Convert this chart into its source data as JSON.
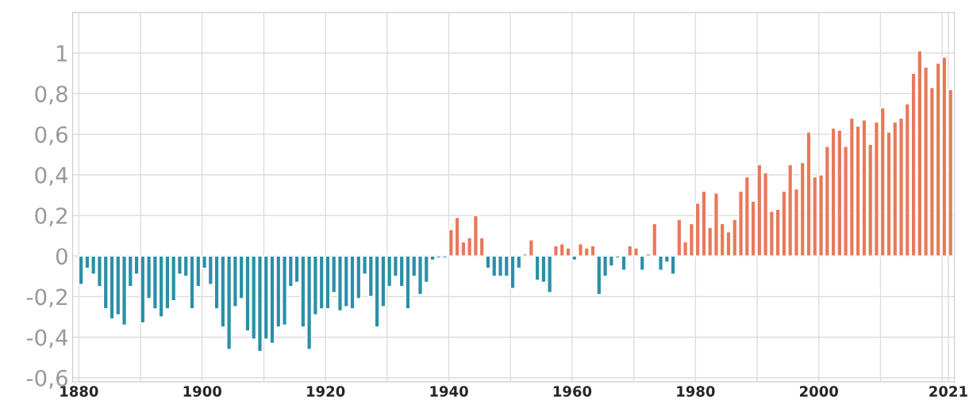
{
  "chart_data": {
    "type": "bar",
    "x": [
      1880,
      1881,
      1882,
      1883,
      1884,
      1885,
      1886,
      1887,
      1888,
      1889,
      1890,
      1891,
      1892,
      1893,
      1894,
      1895,
      1896,
      1897,
      1898,
      1899,
      1900,
      1901,
      1902,
      1903,
      1904,
      1905,
      1906,
      1907,
      1908,
      1909,
      1910,
      1911,
      1912,
      1913,
      1914,
      1915,
      1916,
      1917,
      1918,
      1919,
      1920,
      1921,
      1922,
      1923,
      1924,
      1925,
      1926,
      1927,
      1928,
      1929,
      1930,
      1931,
      1932,
      1933,
      1934,
      1935,
      1936,
      1937,
      1938,
      1939,
      1940,
      1941,
      1942,
      1943,
      1944,
      1945,
      1946,
      1947,
      1948,
      1949,
      1950,
      1951,
      1952,
      1953,
      1954,
      1955,
      1956,
      1957,
      1958,
      1959,
      1960,
      1961,
      1962,
      1963,
      1964,
      1965,
      1966,
      1967,
      1968,
      1969,
      1970,
      1971,
      1972,
      1973,
      1974,
      1975,
      1976,
      1977,
      1978,
      1979,
      1980,
      1981,
      1982,
      1983,
      1984,
      1985,
      1986,
      1987,
      1988,
      1989,
      1990,
      1991,
      1992,
      1993,
      1994,
      1995,
      1996,
      1997,
      1998,
      1999,
      2000,
      2001,
      2002,
      2003,
      2004,
      2005,
      2006,
      2007,
      2008,
      2009,
      2010,
      2011,
      2012,
      2013,
      2014,
      2015,
      2016,
      2017,
      2018,
      2019,
      2020,
      2021
    ],
    "values": [
      -0.14,
      -0.06,
      -0.09,
      -0.15,
      -0.26,
      -0.31,
      -0.29,
      -0.34,
      -0.15,
      -0.09,
      -0.33,
      -0.21,
      -0.26,
      -0.3,
      -0.26,
      -0.22,
      -0.09,
      -0.1,
      -0.26,
      -0.15,
      -0.06,
      -0.14,
      -0.26,
      -0.35,
      -0.46,
      -0.25,
      -0.21,
      -0.37,
      -0.41,
      -0.47,
      -0.41,
      -0.43,
      -0.35,
      -0.34,
      -0.15,
      -0.13,
      -0.35,
      -0.46,
      -0.29,
      -0.26,
      -0.26,
      -0.18,
      -0.27,
      -0.25,
      -0.26,
      -0.21,
      -0.09,
      -0.2,
      -0.35,
      -0.25,
      -0.15,
      -0.1,
      -0.15,
      -0.26,
      -0.1,
      -0.19,
      -0.13,
      -0.02,
      -0.01,
      -0.01,
      0.13,
      0.19,
      0.07,
      0.09,
      0.2,
      0.09,
      -0.06,
      -0.1,
      -0.1,
      -0.1,
      -0.16,
      -0.06,
      0.01,
      0.08,
      -0.12,
      -0.13,
      -0.18,
      0.05,
      0.06,
      0.04,
      -0.02,
      0.06,
      0.04,
      0.05,
      -0.19,
      -0.1,
      -0.05,
      -0.01,
      -0.07,
      0.05,
      0.04,
      -0.07,
      0.01,
      0.16,
      -0.07,
      -0.03,
      -0.09,
      0.18,
      0.07,
      0.16,
      0.26,
      0.32,
      0.14,
      0.31,
      0.16,
      0.12,
      0.18,
      0.32,
      0.39,
      0.27,
      0.45,
      0.41,
      0.22,
      0.23,
      0.32,
      0.45,
      0.33,
      0.46,
      0.61,
      0.39,
      0.4,
      0.54,
      0.63,
      0.62,
      0.54,
      0.68,
      0.64,
      0.67,
      0.55,
      0.66,
      0.73,
      0.61,
      0.66,
      0.68,
      0.75,
      0.9,
      1.01,
      0.93,
      0.83,
      0.95,
      0.98,
      0.82
    ],
    "colors": [
      "#2b8fa6",
      "#2b8fa6",
      "#2b8fa6",
      "#2b8fa6",
      "#2b8fa6",
      "#2b8fa6",
      "#2b8fa6",
      "#2b8fa6",
      "#2b8fa6",
      "#2b8fa6",
      "#2b8fa6",
      "#2b8fa6",
      "#2b8fa6",
      "#2b8fa6",
      "#2b8fa6",
      "#2b8fa6",
      "#2b8fa6",
      "#2b8fa6",
      "#2b8fa6",
      "#2b8fa6",
      "#2b8fa6",
      "#2b8fa6",
      "#2b8fa6",
      "#2b8fa6",
      "#2b8fa6",
      "#2b8fa6",
      "#2b8fa6",
      "#2b8fa6",
      "#2b8fa6",
      "#2b8fa6",
      "#2b8fa6",
      "#2b8fa6",
      "#2b8fa6",
      "#2b8fa6",
      "#2b8fa6",
      "#2b8fa6",
      "#2b8fa6",
      "#2b8fa6",
      "#2b8fa6",
      "#2b8fa6",
      "#2b8fa6",
      "#2b8fa6",
      "#2b8fa6",
      "#2b8fa6",
      "#2b8fa6",
      "#2b8fa6",
      "#2b8fa6",
      "#2b8fa6",
      "#2b8fa6",
      "#2b8fa6",
      "#2b8fa6",
      "#2b8fa6",
      "#2b8fa6",
      "#2b8fa6",
      "#2b8fa6",
      "#2b8fa6",
      "#2b8fa6",
      "#2b8fa6",
      "#2b8fa6",
      "#2b8fa6",
      "#e8795a",
      "#e8795a",
      "#e8795a",
      "#e8795a",
      "#e8795a",
      "#e8795a",
      "#2b8fa6",
      "#2b8fa6",
      "#2b8fa6",
      "#2b8fa6",
      "#2b8fa6",
      "#2b8fa6",
      "#e8795a",
      "#e8795a",
      "#2b8fa6",
      "#2b8fa6",
      "#2b8fa6",
      "#e8795a",
      "#e8795a",
      "#e8795a",
      "#2b8fa6",
      "#e8795a",
      "#e8795a",
      "#e8795a",
      "#2b8fa6",
      "#2b8fa6",
      "#2b8fa6",
      "#2b8fa6",
      "#2b8fa6",
      "#e8795a",
      "#e8795a",
      "#2b8fa6",
      "#e8795a",
      "#e8795a",
      "#2b8fa6",
      "#2b8fa6",
      "#2b8fa6",
      "#e8795a",
      "#e8795a",
      "#e8795a",
      "#e8795a",
      "#e8795a",
      "#e8795a",
      "#e8795a",
      "#e8795a",
      "#e8795a",
      "#e8795a",
      "#e8795a",
      "#e8795a",
      "#e8795a",
      "#e8795a",
      "#e8795a",
      "#e8795a",
      "#e8795a",
      "#e8795a",
      "#e8795a",
      "#e8795a",
      "#e8795a",
      "#e8795a",
      "#e8795a",
      "#e8795a",
      "#e8795a",
      "#e8795a",
      "#e8795a",
      "#e8795a",
      "#e8795a",
      "#e8795a",
      "#e8795a",
      "#e8795a",
      "#e8795a",
      "#e8795a",
      "#e8795a",
      "#e8795a",
      "#e8795a",
      "#e8795a",
      "#e8795a",
      "#e8795a",
      "#e8795a",
      "#e8795a",
      "#e8795a",
      "#e8795a",
      "#e8795a"
    ],
    "xlim": [
      1879,
      2022
    ],
    "xticks": [
      1880,
      {
        "value": 1890,
        "label": null
      },
      1900,
      {
        "value": 1910,
        "label": null
      },
      1920,
      {
        "value": 1930,
        "label": null
      },
      1940,
      {
        "value": 1950,
        "label": null
      },
      1960,
      {
        "value": 1970,
        "label": null
      },
      1980,
      {
        "value": 1990,
        "label": null
      },
      2000,
      {
        "value": 2010,
        "label": null
      },
      {
        "value": 2020,
        "label": null
      },
      2021
    ],
    "ylim": [
      -0.62,
      1.2
    ],
    "yticks": [
      {
        "value": -0.6,
        "label": "-0,6"
      },
      {
        "value": -0.4,
        "label": "-0,4"
      },
      {
        "value": -0.2,
        "label": "-0,2"
      },
      0,
      {
        "value": 0.2,
        "label": "0,2"
      },
      {
        "value": 0.4,
        "label": "0,4"
      },
      {
        "value": 0.6,
        "label": "0,6"
      },
      {
        "value": 0.8,
        "label": "0,8"
      },
      1,
      {
        "value": 1.2,
        "label": null
      }
    ],
    "grid": true,
    "legend": false
  }
}
